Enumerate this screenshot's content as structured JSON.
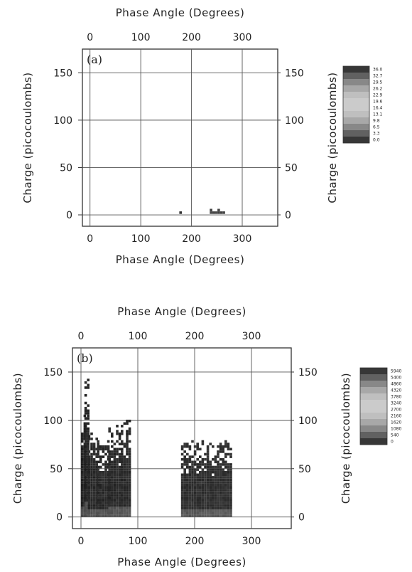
{
  "chart_data": [
    {
      "type": "heatmap",
      "panel_label": "(a)",
      "xlabel": "Phase Angle (Degrees)",
      "ylabel": "Charge (picocoulombs)",
      "xlim": [
        -15,
        370
      ],
      "ylim": [
        -12,
        175
      ],
      "xticks": [
        0,
        100,
        200,
        300
      ],
      "yticks": [
        0,
        50,
        100,
        150
      ],
      "grid": true,
      "colorbar_ticks": [
        "36.0",
        "32.7",
        "29.5",
        "26.2",
        "22.9",
        "19.6",
        "16.4",
        "13.1",
        "9.8",
        "6.5",
        "3.3",
        "0.0"
      ],
      "clusters": [
        {
          "x_range": [
            176,
            182
          ],
          "y_range": [
            1,
            5
          ],
          "level": 0.85
        },
        {
          "x_range": [
            236,
            264
          ],
          "y_range": [
            1,
            7
          ],
          "level": 0.6
        }
      ]
    },
    {
      "type": "heatmap",
      "panel_label": "(b)",
      "xlabel": "Phase Angle (Degrees)",
      "ylabel": "Charge (picocoulombs)",
      "xlim": [
        -15,
        370
      ],
      "ylim": [
        -12,
        175
      ],
      "xticks": [
        0,
        100,
        200,
        300
      ],
      "yticks": [
        0,
        50,
        100,
        150
      ],
      "grid": true,
      "colorbar_ticks": [
        "5940",
        "5400",
        "4860",
        "4320",
        "3780",
        "3240",
        "2700",
        "2160",
        "1620",
        "1080",
        "540",
        "0"
      ],
      "clusters": [
        {
          "x_range": [
            0,
            6
          ],
          "y_range": [
            0,
            108
          ],
          "level": 0.9
        },
        {
          "x_range": [
            6,
            12
          ],
          "y_range": [
            0,
            145
          ],
          "level": 0.9
        },
        {
          "x_range": [
            12,
            28
          ],
          "y_range": [
            0,
            88
          ],
          "level": 0.85
        },
        {
          "x_range": [
            28,
            48
          ],
          "y_range": [
            0,
            80
          ],
          "level": 0.85
        },
        {
          "x_range": [
            48,
            70
          ],
          "y_range": [
            0,
            96
          ],
          "level": 0.85
        },
        {
          "x_range": [
            70,
            84
          ],
          "y_range": [
            0,
            102
          ],
          "level": 0.85
        },
        {
          "x_range": [
            176,
            262
          ],
          "y_range": [
            0,
            80
          ],
          "level": 0.8
        }
      ]
    }
  ]
}
